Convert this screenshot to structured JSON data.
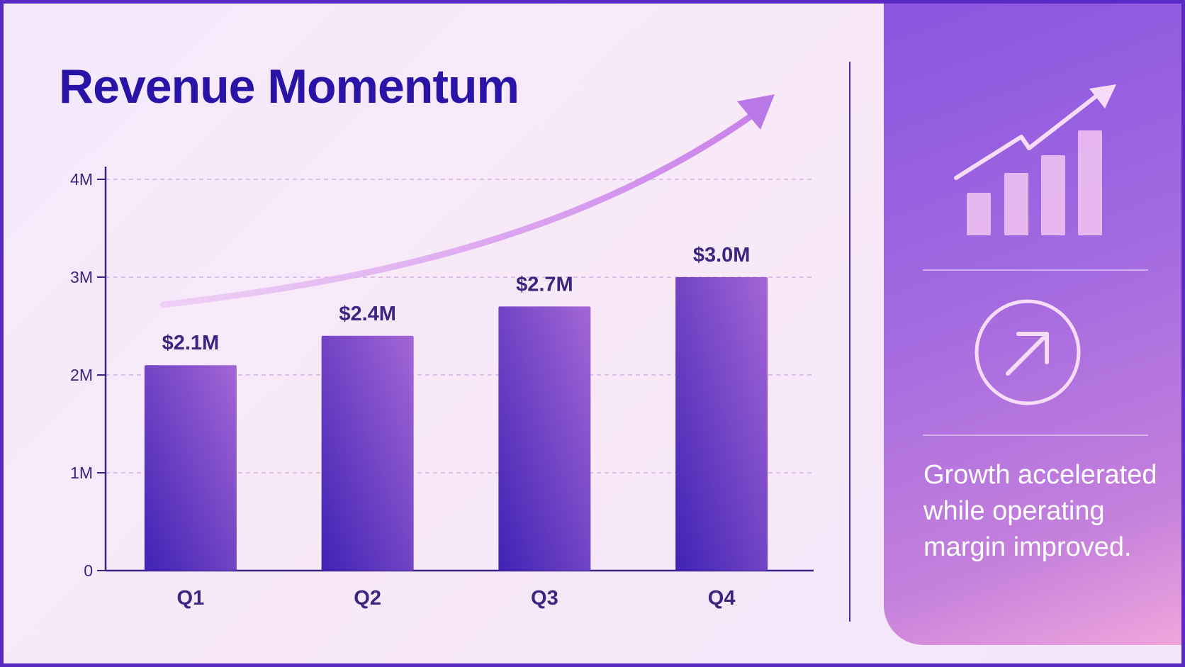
{
  "title": "Revenue Momentum",
  "side_note": "Growth accelerated while operating margin improved.",
  "colors": {
    "title": "#2a14a8",
    "bar_dark": "#3f22b4",
    "bar_light": "#a466d6",
    "trend_arrow": "#e3a6ee",
    "panel": "#a46ae0"
  },
  "icons": [
    "bar-chart-growth-icon",
    "arrow-circle-up-right-icon"
  ],
  "chart_data": {
    "type": "bar",
    "title": "Revenue Momentum",
    "categories": [
      "Q1",
      "Q2",
      "Q3",
      "Q4"
    ],
    "values": [
      2.1,
      2.4,
      2.7,
      3.0
    ],
    "value_labels": [
      "$2.1M",
      "$2.4M",
      "$2.7M",
      "$3.0M"
    ],
    "y_ticks": [
      0,
      1,
      2,
      3,
      4
    ],
    "y_tick_labels": [
      "0",
      "1M",
      "2M",
      "3M",
      "4M"
    ],
    "ylim": [
      0,
      4
    ],
    "xlabel": "",
    "ylabel": "",
    "grid": true,
    "trend_arrow": true
  }
}
